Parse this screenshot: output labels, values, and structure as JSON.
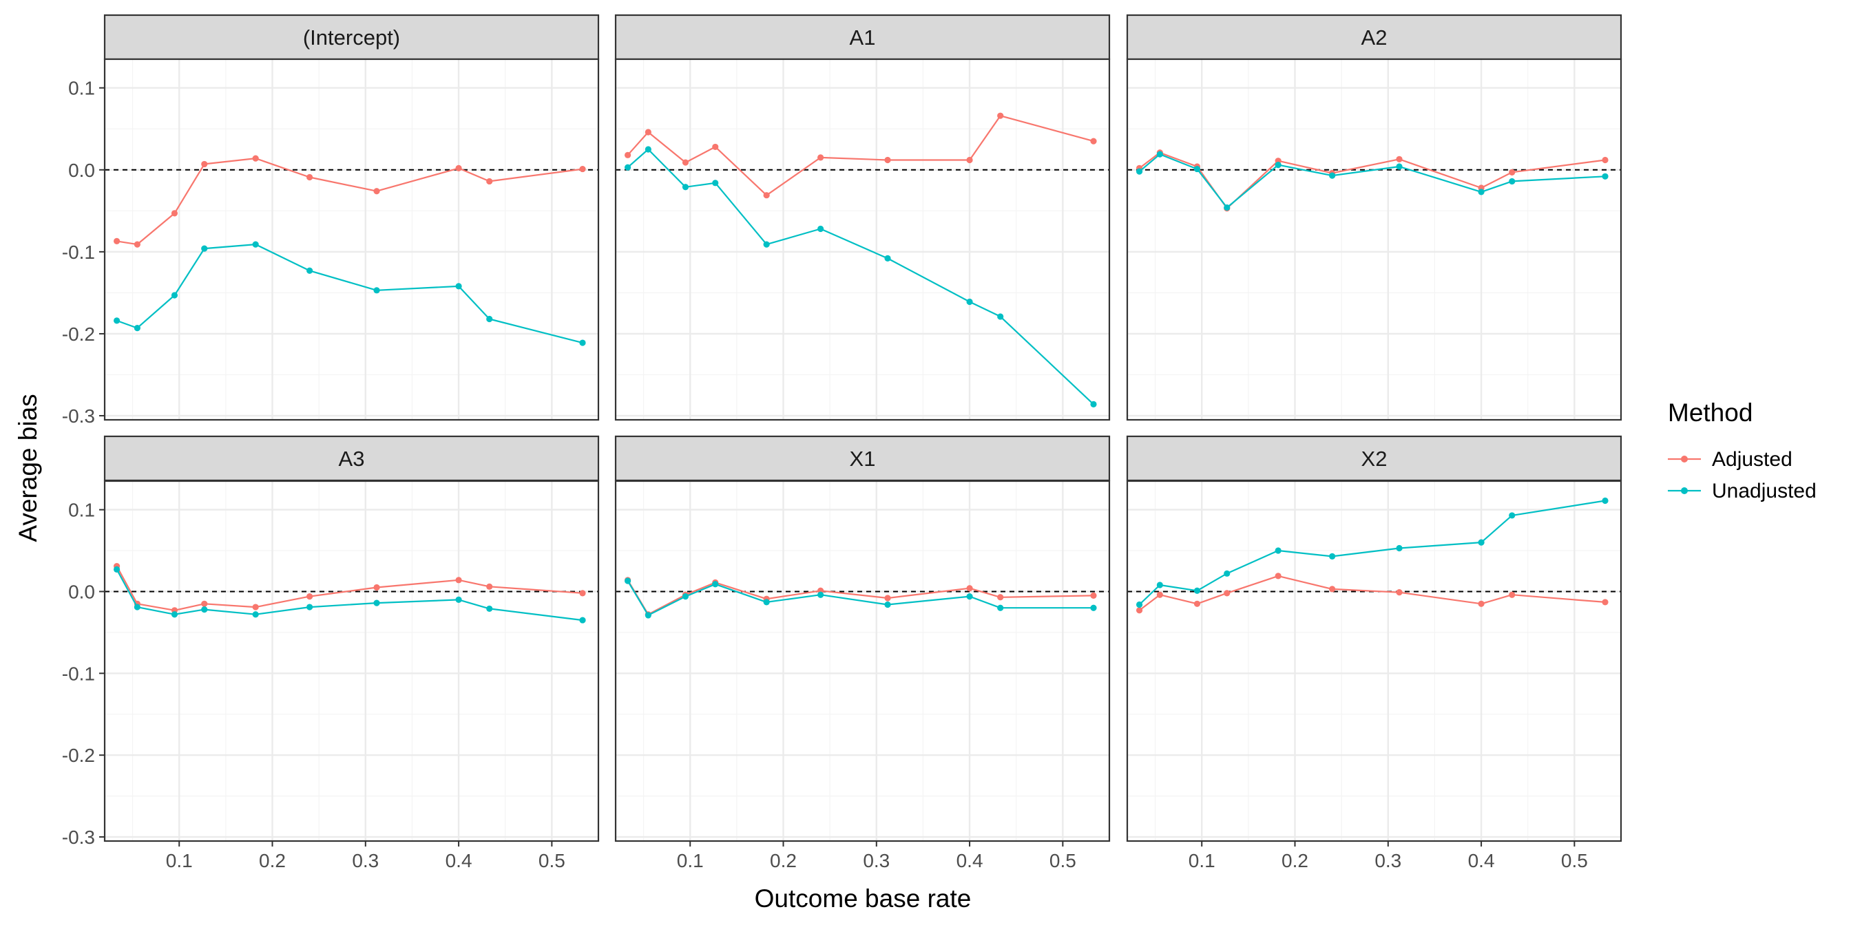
{
  "chart_data": {
    "type": "line",
    "facet_layout": "2x3",
    "xlabel": "Outcome base rate",
    "ylabel": "Average bias",
    "xlim": [
      0.02,
      0.55
    ],
    "ylim": [
      -0.305,
      0.135
    ],
    "x_ticks": [
      0.1,
      0.2,
      0.3,
      0.4,
      0.5
    ],
    "x_tick_labels": [
      "0.1",
      "0.2",
      "0.3",
      "0.4",
      "0.5"
    ],
    "y_ticks": [
      0.1,
      0.0,
      -0.1,
      -0.2,
      -0.3
    ],
    "y_tick_labels": [
      "0.1",
      "0.0",
      "-0.1",
      "-0.2",
      "-0.3"
    ],
    "reference_line": 0,
    "grid": true,
    "legend": {
      "title": "Method",
      "placement": "right",
      "entries": [
        "Adjusted",
        "Unadjusted"
      ]
    },
    "colors": {
      "Adjusted": "#F8766D",
      "Unadjusted": "#00BFC4"
    },
    "x": [
      0.033,
      0.055,
      0.095,
      0.127,
      0.182,
      0.24,
      0.312,
      0.4,
      0.433,
      0.533
    ],
    "panels": [
      {
        "title": "(Intercept)",
        "series": [
          {
            "name": "Adjusted",
            "values": [
              -0.087,
              -0.091,
              -0.053,
              0.007,
              0.014,
              -0.009,
              -0.026,
              0.002,
              -0.014,
              0.001
            ]
          },
          {
            "name": "Unadjusted",
            "values": [
              -0.184,
              -0.193,
              -0.153,
              -0.096,
              -0.091,
              -0.123,
              -0.147,
              -0.142,
              -0.182,
              -0.211
            ]
          }
        ]
      },
      {
        "title": "A1",
        "series": [
          {
            "name": "Adjusted",
            "values": [
              0.018,
              0.046,
              0.009,
              0.028,
              -0.031,
              0.015,
              0.012,
              0.012,
              0.066,
              0.035
            ]
          },
          {
            "name": "Unadjusted",
            "values": [
              0.003,
              0.025,
              -0.021,
              -0.016,
              -0.091,
              -0.072,
              -0.108,
              -0.161,
              -0.179,
              -0.286
            ]
          }
        ]
      },
      {
        "title": "A2",
        "series": [
          {
            "name": "Adjusted",
            "values": [
              0.002,
              0.021,
              0.004,
              -0.047,
              0.011,
              -0.004,
              0.013,
              -0.022,
              -0.003,
              0.012
            ]
          },
          {
            "name": "Unadjusted",
            "values": [
              -0.002,
              0.019,
              0.001,
              -0.046,
              0.006,
              -0.007,
              0.004,
              -0.027,
              -0.014,
              -0.008
            ]
          }
        ]
      },
      {
        "title": "A3",
        "series": [
          {
            "name": "Adjusted",
            "values": [
              0.031,
              -0.015,
              -0.023,
              -0.015,
              -0.019,
              -0.006,
              0.005,
              0.014,
              0.006,
              -0.002
            ]
          },
          {
            "name": "Unadjusted",
            "values": [
              0.027,
              -0.019,
              -0.028,
              -0.022,
              -0.028,
              -0.019,
              -0.014,
              -0.01,
              -0.021,
              -0.035
            ]
          }
        ]
      },
      {
        "title": "X1",
        "series": [
          {
            "name": "Adjusted",
            "values": [
              0.014,
              -0.028,
              -0.004,
              0.011,
              -0.009,
              0.001,
              -0.008,
              0.004,
              -0.007,
              -0.005
            ]
          },
          {
            "name": "Unadjusted",
            "values": [
              0.013,
              -0.029,
              -0.006,
              0.009,
              -0.013,
              -0.004,
              -0.016,
              -0.006,
              -0.02,
              -0.02
            ]
          }
        ]
      },
      {
        "title": "X2",
        "series": [
          {
            "name": "Adjusted",
            "values": [
              -0.023,
              -0.004,
              -0.015,
              -0.002,
              0.019,
              0.003,
              -0.001,
              -0.015,
              -0.004,
              -0.013
            ]
          },
          {
            "name": "Unadjusted",
            "values": [
              -0.016,
              0.008,
              0.001,
              0.022,
              0.05,
              0.043,
              0.053,
              0.06,
              0.093,
              0.111
            ]
          }
        ]
      }
    ]
  }
}
